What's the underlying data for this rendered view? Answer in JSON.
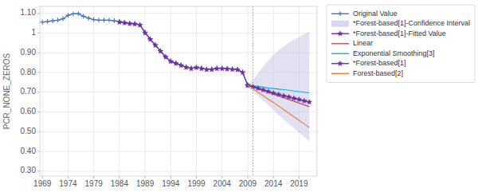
{
  "chart_data": {
    "type": "line",
    "ylabel": "PCR_NONE_ZEROS",
    "xlim": [
      1968.5,
      2022.5
    ],
    "ylim": [
      0.275,
      1.135
    ],
    "yticks": [
      {
        "value": 0.3,
        "label": "0.30"
      },
      {
        "value": 0.4,
        "label": "0.40"
      },
      {
        "value": 0.5,
        "label": "0.50"
      },
      {
        "value": 0.6,
        "label": "0.60"
      },
      {
        "value": 0.7,
        "label": "0.70"
      },
      {
        "value": 0.8,
        "label": "0.80"
      },
      {
        "value": 0.9,
        "label": "0.90"
      },
      1,
      {
        "value": 1.1,
        "label": "1.10"
      }
    ],
    "xticks": [
      1969,
      1974,
      1979,
      1984,
      1989,
      1994,
      1999,
      2004,
      2009,
      2014,
      2019
    ],
    "forecast_start": 2010,
    "grid": true,
    "legend": "upper right",
    "series": [
      {
        "name": "Original Value",
        "color": "#4472C4",
        "marker": "plus",
        "x": [
          1969,
          1970,
          1971,
          1972,
          1973,
          1974,
          1975,
          1976,
          1977,
          1978,
          1979,
          1980,
          1981,
          1982,
          1983,
          1984,
          1985,
          1986,
          1987,
          1988,
          1989,
          1990,
          1991,
          1992,
          1993,
          1994,
          1995,
          1996,
          1997,
          1998,
          1999,
          2000,
          2001,
          2002,
          2003,
          2004,
          2005,
          2006,
          2007,
          2008,
          2009
        ],
        "values": [
          1.055,
          1.058,
          1.062,
          1.065,
          1.072,
          1.09,
          1.097,
          1.098,
          1.085,
          1.075,
          1.068,
          1.065,
          1.065,
          1.065,
          1.062,
          1.058,
          1.052,
          1.048,
          1.047,
          1.042,
          1.005,
          0.97,
          0.94,
          0.91,
          0.88,
          0.858,
          0.848,
          0.838,
          0.828,
          0.822,
          0.827,
          0.822,
          0.818,
          0.818,
          0.822,
          0.822,
          0.82,
          0.818,
          0.816,
          0.802,
          0.735
        ]
      },
      {
        "name": "*Forest-based[1]-Confidence Interval",
        "type": "band",
        "color": "#C8C8E8",
        "x": [
          2009,
          2010,
          2011,
          2012,
          2013,
          2014,
          2015,
          2016,
          2017,
          2018,
          2019,
          2020,
          2021
        ],
        "upper": [
          0.735,
          0.76,
          0.795,
          0.83,
          0.86,
          0.888,
          0.912,
          0.932,
          0.95,
          0.966,
          0.98,
          0.995,
          1.008
        ],
        "lower": [
          0.735,
          0.71,
          0.682,
          0.658,
          0.634,
          0.61,
          0.585,
          0.562,
          0.54,
          0.518,
          0.496,
          0.474,
          0.452
        ]
      },
      {
        "name": "*Forest-based[1]-Fitted Value",
        "color": "#7030A0",
        "marker": "star",
        "x": [
          1984,
          1985,
          1986,
          1987,
          1988,
          1989,
          1990,
          1991,
          1992,
          1993,
          1994,
          1995,
          1996,
          1997,
          1998,
          1999,
          2000,
          2001,
          2002,
          2003,
          2004,
          2005,
          2006,
          2007,
          2008,
          2009
        ],
        "values": [
          1.055,
          1.052,
          1.048,
          1.046,
          1.04,
          1.0,
          0.968,
          0.938,
          0.908,
          0.878,
          0.856,
          0.846,
          0.836,
          0.826,
          0.82,
          0.825,
          0.82,
          0.815,
          0.815,
          0.82,
          0.82,
          0.818,
          0.816,
          0.814,
          0.8,
          0.735
        ]
      },
      {
        "name": "Linear",
        "color": "#C0504D",
        "x": [
          2009,
          2010,
          2011,
          2012,
          2013,
          2014,
          2015,
          2016,
          2017,
          2018,
          2019,
          2020,
          2021
        ],
        "values": [
          0.735,
          0.726,
          0.717,
          0.708,
          0.699,
          0.69,
          0.681,
          0.672,
          0.663,
          0.654,
          0.645,
          0.636,
          0.627
        ]
      },
      {
        "name": "Exponential Smoothing[3]",
        "color": "#00B0F0",
        "x": [
          2009,
          2010,
          2011,
          2012,
          2013,
          2014,
          2015,
          2016,
          2017,
          2018,
          2019,
          2020,
          2021
        ],
        "values": [
          0.735,
          0.732,
          0.729,
          0.726,
          0.722,
          0.719,
          0.716,
          0.713,
          0.71,
          0.706,
          0.703,
          0.7,
          0.697
        ]
      },
      {
        "name": "*Forest-based[1]",
        "color": "#7030A0",
        "marker": "star",
        "x": [
          2009,
          2010,
          2011,
          2012,
          2013,
          2014,
          2015,
          2016,
          2017,
          2018,
          2019,
          2020,
          2021
        ],
        "values": [
          0.735,
          0.728,
          0.72,
          0.712,
          0.704,
          0.696,
          0.689,
          0.682,
          0.676,
          0.669,
          0.663,
          0.656,
          0.65
        ]
      },
      {
        "name": "Forest-based[2]",
        "color": "#ED7D31",
        "x": [
          2009,
          2010,
          2011,
          2012,
          2013,
          2014,
          2015,
          2016,
          2017,
          2018,
          2019,
          2020,
          2021
        ],
        "values": [
          0.735,
          0.718,
          0.7,
          0.683,
          0.665,
          0.648,
          0.63,
          0.612,
          0.594,
          0.576,
          0.558,
          0.54,
          0.52
        ]
      }
    ]
  }
}
